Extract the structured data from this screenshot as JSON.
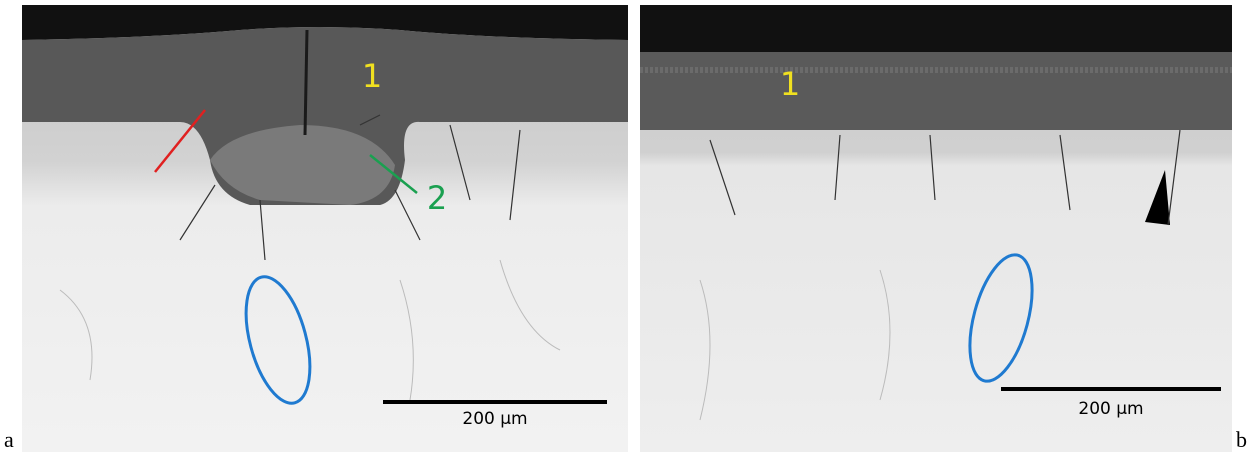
{
  "panels": [
    {
      "label": "a",
      "annotations": [
        "1",
        "2"
      ],
      "scale_bar": "200 µm"
    },
    {
      "label": "b",
      "annotations": [
        "1"
      ],
      "scale_bar": "200 µm"
    }
  ]
}
